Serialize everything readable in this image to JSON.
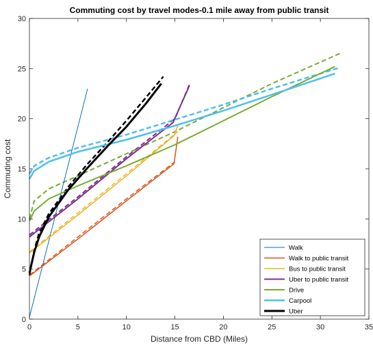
{
  "chart_data": {
    "type": "line",
    "title": "Commuting cost by travel modes-0.1 mile away from public transit",
    "xlabel": "Distance from CBD (Miles)",
    "ylabel": "Commuting cost",
    "xlim": [
      0,
      35
    ],
    "ylim": [
      0,
      30
    ],
    "xticks": [
      0,
      5,
      10,
      15,
      20,
      25,
      30,
      35
    ],
    "yticks": [
      0,
      5,
      10,
      15,
      20,
      25,
      30
    ],
    "grid": false,
    "legend_position": "bottom-right",
    "series": [
      {
        "name": "Walk",
        "color": "#0072BD",
        "width": 1,
        "dashed": false,
        "x": [
          0,
          6.0
        ],
        "y": [
          0.2,
          23.0
        ]
      },
      {
        "name": "Walk to public transit",
        "color": "#D95319",
        "width": 1.5,
        "dashed": false,
        "x": [
          0,
          5,
          10,
          14.9,
          15.3
        ],
        "y": [
          4.3,
          8.0,
          11.8,
          15.5,
          18.2
        ]
      },
      {
        "name": "Bus to public transit",
        "color": "#EDB120",
        "width": 1.5,
        "dashed": false,
        "x": [
          0,
          5,
          10,
          14.9,
          15.3
        ],
        "y": [
          6.6,
          10.4,
          14.3,
          18.3,
          19.3
        ]
      },
      {
        "name": "Uber to public transit",
        "color": "#7E2F8E",
        "width": 2,
        "dashed": false,
        "x": [
          0,
          5,
          10,
          14.8,
          16.5
        ],
        "y": [
          8.2,
          12.0,
          16.0,
          19.6,
          23.3
        ]
      },
      {
        "name": "Drive",
        "color": "#77AC30",
        "width": 2,
        "dashed": false,
        "x": [
          0,
          0.5,
          2,
          5,
          10,
          15,
          20,
          25,
          31.5
        ],
        "y": [
          9.8,
          10.8,
          12.0,
          13.3,
          15.3,
          17.4,
          19.8,
          22.2,
          25.2
        ]
      },
      {
        "name": "Carpool",
        "color": "#4DBEEE",
        "width": 2.5,
        "dashed": false,
        "x": [
          0,
          0.5,
          2,
          5,
          10,
          15,
          20,
          25,
          31.5
        ],
        "y": [
          14.0,
          14.8,
          15.7,
          16.7,
          17.9,
          19.3,
          20.8,
          22.4,
          24.5
        ]
      },
      {
        "name": "Uber",
        "color": "#000000",
        "width": 3,
        "dashed": false,
        "x": [
          0,
          0.5,
          1,
          2,
          4,
          6,
          8,
          10,
          12,
          13.6
        ],
        "y": [
          4.6,
          6.7,
          8.2,
          10.2,
          12.9,
          15.1,
          17.2,
          19.2,
          21.5,
          23.5
        ]
      },
      {
        "name": "",
        "color": "#D95319",
        "width": 1.5,
        "dashed": true,
        "x": [
          0,
          5,
          10,
          15
        ],
        "y": [
          4.4,
          8.2,
          12.0,
          15.7
        ]
      },
      {
        "name": "",
        "color": "#EDB120",
        "width": 1.5,
        "dashed": true,
        "x": [
          0,
          5,
          10,
          15.3
        ],
        "y": [
          6.7,
          10.6,
          14.5,
          18.7
        ]
      },
      {
        "name": "",
        "color": "#7E2F8E",
        "width": 2,
        "dashed": true,
        "x": [
          0,
          5,
          10,
          15,
          16.5
        ],
        "y": [
          8.4,
          12.2,
          16.2,
          20.0,
          23.4
        ]
      },
      {
        "name": "",
        "color": "#77AC30",
        "width": 2,
        "dashed": true,
        "x": [
          0,
          0.5,
          2,
          5,
          10,
          15,
          20,
          25,
          32
        ],
        "y": [
          10.0,
          11.8,
          13.0,
          14.3,
          16.5,
          18.7,
          21.1,
          23.5,
          26.5
        ]
      },
      {
        "name": "",
        "color": "#4DBEEE",
        "width": 2.5,
        "dashed": true,
        "x": [
          0,
          0.5,
          2,
          5,
          10,
          15,
          20,
          25,
          32
        ],
        "y": [
          14.5,
          15.3,
          16.1,
          17.1,
          18.4,
          19.9,
          21.4,
          23.0,
          25.1
        ]
      },
      {
        "name": "",
        "color": "#000000",
        "width": 2.5,
        "dashed": true,
        "x": [
          0,
          0.5,
          1,
          2,
          4,
          6,
          8,
          10,
          12,
          13.8
        ],
        "y": [
          4.4,
          6.9,
          8.6,
          10.5,
          13.2,
          15.5,
          17.6,
          19.8,
          22.1,
          24.2
        ]
      }
    ]
  }
}
